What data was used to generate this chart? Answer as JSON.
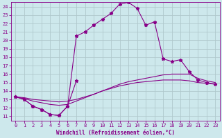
{
  "bg_color": "#cde8ec",
  "grid_color": "#b0c8cc",
  "curve_color": "#880088",
  "xlabel": "Windchill (Refroidissement éolien,°C)",
  "xlim": [
    -0.5,
    23.5
  ],
  "ylim": [
    10.5,
    24.5
  ],
  "xticks": [
    0,
    1,
    2,
    3,
    4,
    5,
    6,
    7,
    8,
    9,
    10,
    11,
    12,
    13,
    14,
    15,
    16,
    17,
    18,
    19,
    20,
    21,
    22,
    23
  ],
  "yticks": [
    11,
    12,
    13,
    14,
    15,
    16,
    17,
    18,
    19,
    20,
    21,
    22,
    23,
    24
  ],
  "curves": [
    {
      "x": [
        0,
        1,
        2,
        3,
        4,
        5,
        6,
        7,
        8,
        9,
        10,
        11,
        12,
        13,
        14,
        15,
        16,
        17,
        18,
        19,
        20,
        21,
        22,
        23
      ],
      "y": [
        13.3,
        13.0,
        12.2,
        11.8,
        11.2,
        11.1,
        12.2,
        20.5,
        21.0,
        21.8,
        22.5,
        23.2,
        24.3,
        24.5,
        23.8,
        21.8,
        22.2,
        17.8,
        17.5,
        17.7,
        16.3,
        15.3,
        15.0,
        14.8
      ],
      "marker": true
    },
    {
      "x": [
        0,
        1,
        2,
        3,
        4,
        5,
        6,
        7,
        8,
        9,
        10,
        11,
        12,
        13,
        14,
        15,
        16,
        17,
        18,
        19,
        20,
        21,
        22,
        23
      ],
      "y": [
        13.3,
        13.2,
        13.0,
        12.9,
        12.8,
        12.7,
        12.8,
        13.0,
        13.3,
        13.6,
        14.0,
        14.3,
        14.6,
        14.8,
        15.0,
        15.1,
        15.2,
        15.3,
        15.3,
        15.3,
        15.2,
        15.0,
        14.9,
        14.8
      ],
      "marker": false
    },
    {
      "x": [
        0,
        1,
        2,
        3,
        4,
        5,
        6,
        7,
        8,
        9,
        10,
        11,
        12,
        13,
        14,
        15,
        16,
        17,
        18,
        19,
        20,
        21,
        22,
        23
      ],
      "y": [
        13.3,
        13.1,
        12.8,
        12.6,
        12.4,
        12.3,
        12.4,
        12.8,
        13.2,
        13.6,
        14.0,
        14.4,
        14.8,
        15.1,
        15.3,
        15.5,
        15.7,
        15.9,
        16.0,
        16.0,
        16.0,
        15.5,
        15.2,
        15.0
      ],
      "marker": false
    },
    {
      "x": [
        0,
        1,
        2,
        3,
        4,
        5,
        6,
        7
      ],
      "y": [
        13.3,
        13.0,
        12.2,
        11.8,
        11.2,
        11.1,
        12.2,
        15.2
      ],
      "marker": true
    }
  ]
}
